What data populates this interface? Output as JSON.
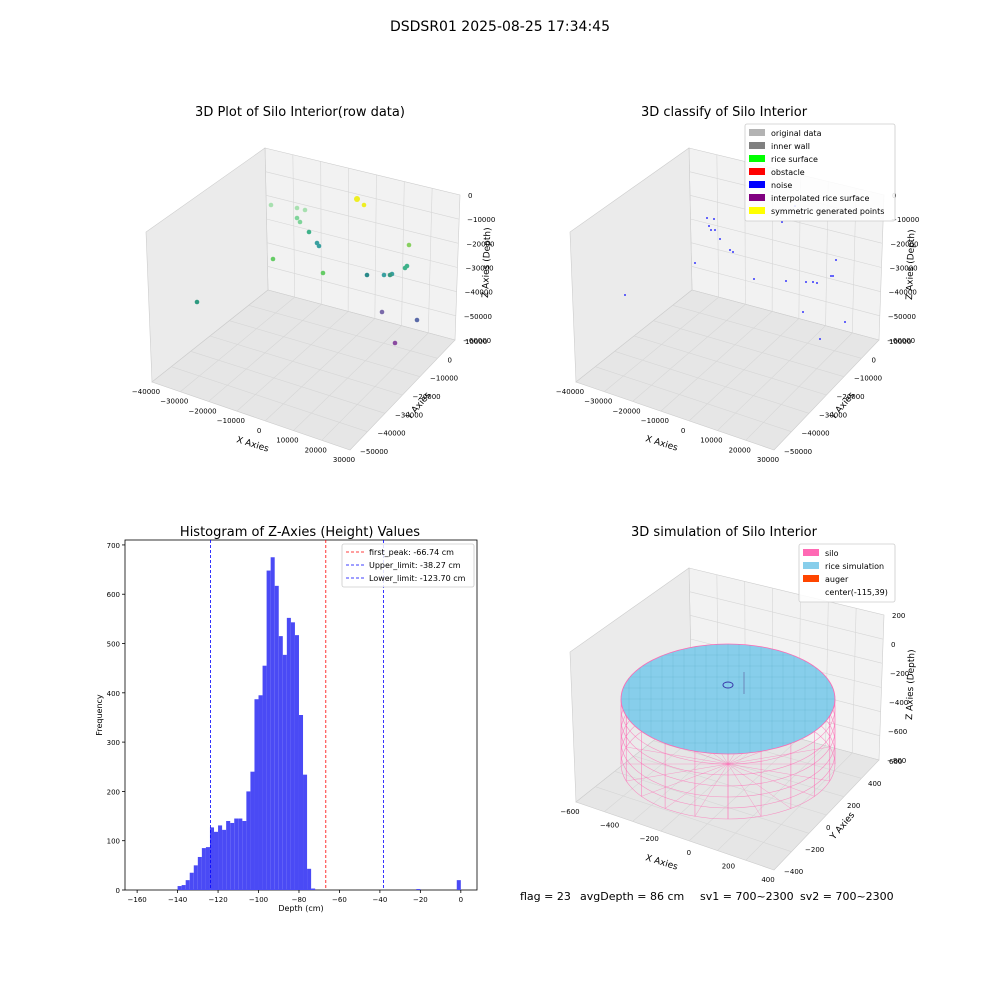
{
  "figure": {
    "suptitle": "DSDSR01 2025-08-25 17:34:45",
    "footer": {
      "flag": "flag = 23",
      "avg": "avgDepth = 86 cm",
      "sv1": "sv1 = 700~2300",
      "sv2": "sv2 = 700~2300"
    }
  },
  "colors": {
    "pane": "#f2f2f2",
    "grid": "#d6d6d6",
    "hist_bar": "#4a4af5",
    "peak_line": "#ff0000",
    "limit_line": "#0000ff",
    "silo": "#ff69b4",
    "rice": "#87ceeb",
    "auger": "#ff4500"
  },
  "chart_data": [
    {
      "type": "scatter",
      "title": "3D Plot of Silo Interior(row data)",
      "xlabel": "X Axies",
      "ylabel": "Y Axies",
      "zlabel": "Z Axies (Depth)",
      "xticks": [
        "−40000",
        "−30000",
        "−20000",
        "−10000",
        "0",
        "10000",
        "20000",
        "30000"
      ],
      "yticks": [
        "10000",
        "0",
        "−10000",
        "−20000",
        "−30000",
        "−40000",
        "−50000"
      ],
      "zticks": [
        "0",
        "−10000",
        "−20000",
        "−30000",
        "−40000",
        "−50000",
        "−60000"
      ],
      "grid": true,
      "points": [
        {
          "c": "#a8e0b0"
        },
        {
          "c": "#a8e0b0"
        },
        {
          "c": "#a8e0b0"
        },
        {
          "c": "#7fd49a"
        },
        {
          "c": "#7fd49a"
        },
        {
          "c": "#3fb28a"
        },
        {
          "c": "#3aa0a0"
        },
        {
          "c": "#3aa0a0"
        },
        {
          "c": "#66cc66"
        },
        {
          "c": "#66cc66"
        },
        {
          "c": "#2e9a80"
        },
        {
          "c": "#eeee22"
        },
        {
          "c": "#eeee22"
        },
        {
          "c": "#88d060"
        },
        {
          "c": "#3fb28a"
        },
        {
          "c": "#3fb28a"
        },
        {
          "c": "#2a8a8a"
        },
        {
          "c": "#3aa0a0"
        },
        {
          "c": "#3aa0a0"
        },
        {
          "c": "#7a6aaa"
        },
        {
          "c": "#5a6aa8"
        },
        {
          "c": "#8a4aa0"
        },
        {
          "c": "#3a9a80"
        }
      ]
    },
    {
      "type": "scatter",
      "title": "3D classify of Silo Interior",
      "xlabel": "X Axies",
      "ylabel": "Y Axies",
      "zlabel": "Z Axies (Depth)",
      "xticks": [
        "−40000",
        "−30000",
        "−20000",
        "−10000",
        "0",
        "10000",
        "20000",
        "30000"
      ],
      "yticks": [
        "10000",
        "0",
        "−10000",
        "−20000",
        "−30000",
        "−40000",
        "−50000"
      ],
      "zticks": [
        "0",
        "−10000",
        "−20000",
        "−30000",
        "−40000",
        "−50000",
        "−60000"
      ],
      "grid": true,
      "legend_placement": "upper-right",
      "legend": [
        {
          "label": "original data",
          "color": "#b3b3b3"
        },
        {
          "label": "inner wall",
          "color": "#808080"
        },
        {
          "label": "rice surface",
          "color": "#00ff00"
        },
        {
          "label": "obstacle",
          "color": "#ff0000"
        },
        {
          "label": "noise",
          "color": "#0000ff"
        },
        {
          "label": "interpolated rice surface",
          "color": "#800080"
        },
        {
          "label": "symmetric generated points",
          "color": "#ffff00"
        }
      ]
    },
    {
      "type": "bar",
      "title": "Histogram of Z-Axies (Height) Values",
      "xlabel": "Depth (cm)",
      "ylabel": "Frequency",
      "xlim": [
        -166,
        8
      ],
      "ylim": [
        0,
        710
      ],
      "xticks": [
        -160,
        -140,
        -120,
        -100,
        -80,
        -60,
        -40,
        -20,
        0
      ],
      "yticks": [
        0,
        100,
        200,
        300,
        400,
        500,
        600,
        700
      ],
      "bin_width": 2,
      "bins": [
        {
          "x": -140,
          "v": 8
        },
        {
          "x": -138,
          "v": 10
        },
        {
          "x": -136,
          "v": 20
        },
        {
          "x": -134,
          "v": 35
        },
        {
          "x": -132,
          "v": 50
        },
        {
          "x": -130,
          "v": 67
        },
        {
          "x": -128,
          "v": 85
        },
        {
          "x": -126,
          "v": 87
        },
        {
          "x": -124,
          "v": 127
        },
        {
          "x": -122,
          "v": 118
        },
        {
          "x": -120,
          "v": 131
        },
        {
          "x": -118,
          "v": 122
        },
        {
          "x": -116,
          "v": 140
        },
        {
          "x": -114,
          "v": 136
        },
        {
          "x": -112,
          "v": 145
        },
        {
          "x": -110,
          "v": 145
        },
        {
          "x": -108,
          "v": 140
        },
        {
          "x": -106,
          "v": 200
        },
        {
          "x": -104,
          "v": 240
        },
        {
          "x": -102,
          "v": 387
        },
        {
          "x": -100,
          "v": 395
        },
        {
          "x": -98,
          "v": 455
        },
        {
          "x": -96,
          "v": 648
        },
        {
          "x": -94,
          "v": 675
        },
        {
          "x": -92,
          "v": 617
        },
        {
          "x": -90,
          "v": 515
        },
        {
          "x": -88,
          "v": 477
        },
        {
          "x": -86,
          "v": 552
        },
        {
          "x": -84,
          "v": 543
        },
        {
          "x": -82,
          "v": 517
        },
        {
          "x": -80,
          "v": 355
        },
        {
          "x": -78,
          "v": 234
        },
        {
          "x": -76,
          "v": 43
        },
        {
          "x": -74,
          "v": 3
        },
        {
          "x": -22,
          "v": 2
        },
        {
          "x": -2,
          "v": 20
        }
      ],
      "lines": [
        {
          "label": "first_peak: -66.74 cm",
          "x": -66.74,
          "color": "#ff0000"
        },
        {
          "label": "Upper_limit: -38.27 cm",
          "x": -38.27,
          "color": "#0000ff"
        },
        {
          "label": "Lower_limit: -123.70 cm",
          "x": -123.7,
          "color": "#0000ff"
        }
      ],
      "legend_placement": "upper-right"
    },
    {
      "type": "surface3d",
      "title": "3D simulation of Silo Interior",
      "xlabel": "X Axies",
      "ylabel": "Y Axies",
      "zlabel": "Z Axies (Depth)",
      "xticks": [
        "−600",
        "−400",
        "−200",
        "0",
        "200",
        "400"
      ],
      "yticks": [
        "600",
        "400",
        "200",
        "0",
        "−200",
        "−400"
      ],
      "zticks": [
        "200",
        "0",
        "−200",
        "−400",
        "−600",
        "−800"
      ],
      "grid": true,
      "legend_placement": "upper-right",
      "legend": [
        {
          "label": "silo",
          "color": "#ff69b4"
        },
        {
          "label": "rice simulation",
          "color": "#87ceeb"
        },
        {
          "label": "auger",
          "color": "#ff4500"
        },
        {
          "label": "center(-115,39)",
          "color": ""
        }
      ]
    }
  ]
}
